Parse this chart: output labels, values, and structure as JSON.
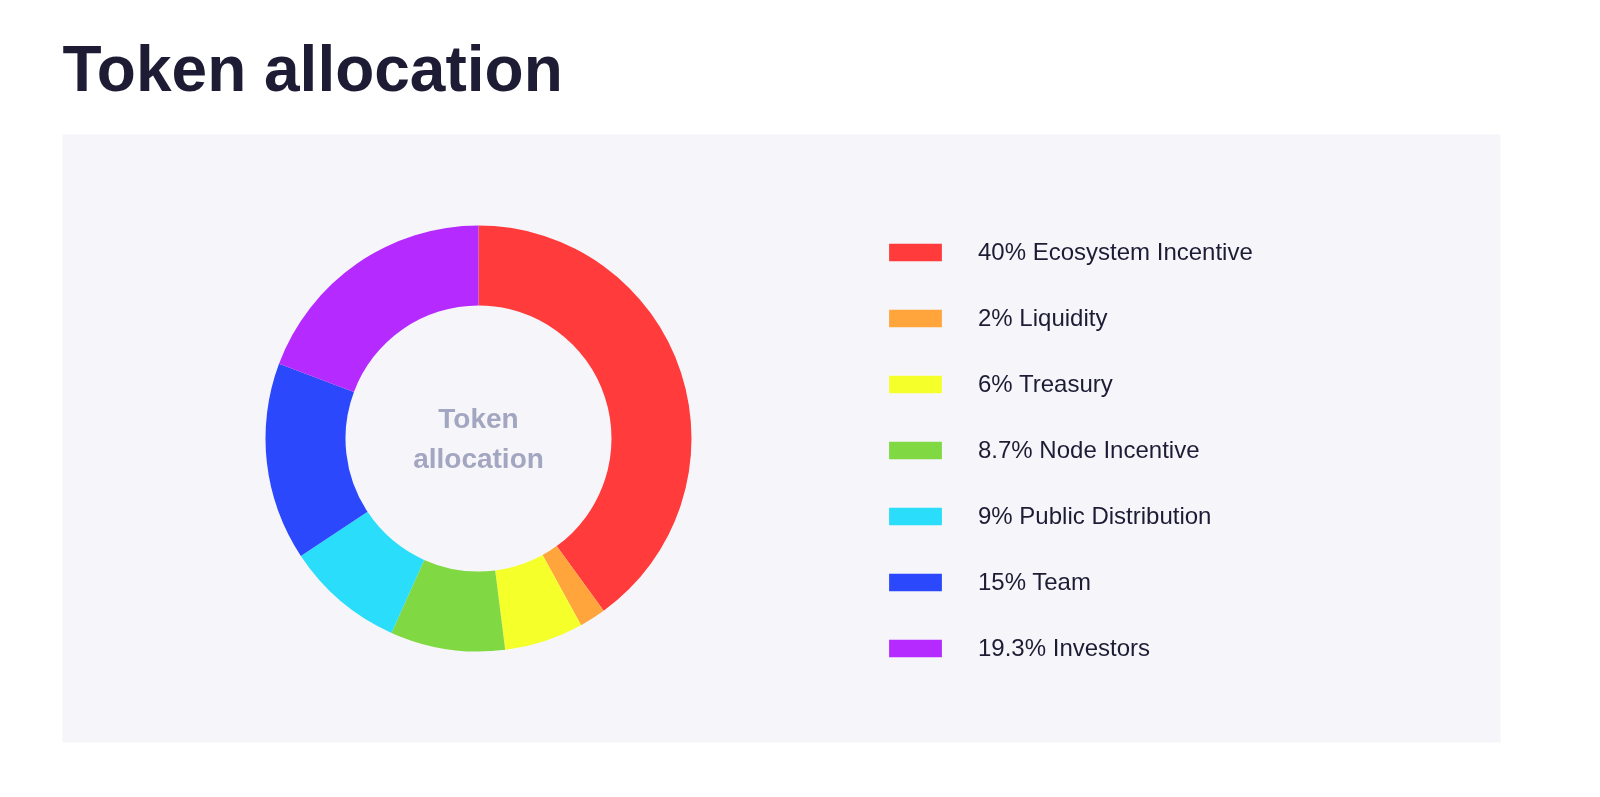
{
  "chart_data": {
    "type": "donut",
    "title": "Token allocation",
    "categories": [
      "40% Ecosystem Incentive",
      "2% Liquidity",
      "6% Treasury",
      "8.7% Node Incentive",
      "9% Public Distribution",
      "15% Team",
      "19.3% Investors"
    ],
    "values": [
      40,
      2,
      6,
      8.7,
      9,
      15,
      19.3
    ],
    "colors": [
      "#ff3b3b",
      "#ffa53b",
      "#f5ff2a",
      "#80d843",
      "#29ddfb",
      "#2b48fd",
      "#b52bff"
    ],
    "annotations": [
      "Token allocation"
    ],
    "legend": "right"
  }
}
